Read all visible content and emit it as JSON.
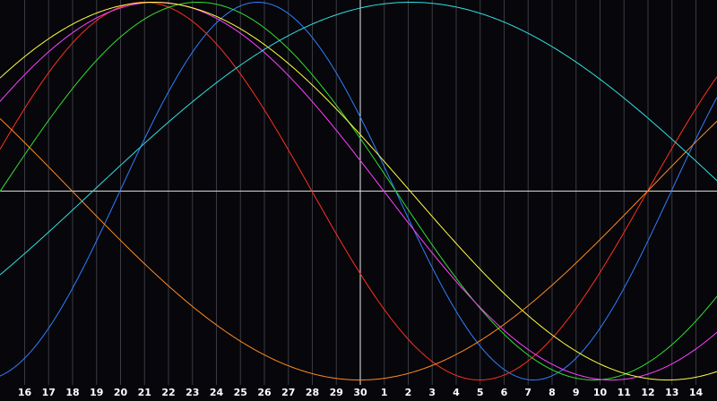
{
  "chart_data": {
    "type": "line",
    "title": "",
    "xlabel": "",
    "ylabel": "",
    "x_tick_labels": [
      "16",
      "17",
      "18",
      "19",
      "20",
      "21",
      "22",
      "23",
      "24",
      "25",
      "26",
      "27",
      "28",
      "29",
      "30",
      "1",
      "2",
      "3",
      "4",
      "5",
      "6",
      "7",
      "8",
      "9",
      "10",
      "11",
      "12",
      "13",
      "14"
    ],
    "today_label": "30",
    "ylim": [
      -1,
      1
    ],
    "grid": true,
    "legend": "none",
    "series": [
      {
        "color": "#2f7fff",
        "period_days": 23,
        "values": [
          -0.887,
          -0.269,
          0.398,
          0.887,
          0.997,
          0.682,
          0.063,
          -0.577,
          -0.97,
          -0.942,
          -0.52,
          0.136,
          0.731,
          0.998,
          0.816,
          0.27,
          -0.398,
          -0.887,
          -0.997,
          -0.682,
          -0.063,
          0.577,
          0.97,
          0.942,
          0.52,
          -0.136,
          -0.731,
          -0.998,
          -0.816
        ]
      },
      {
        "color": "#ff3020",
        "period_days": 28,
        "values": [
          0.434,
          0.782,
          0.975,
          0.975,
          0.782,
          0.434,
          0,
          -0.434,
          -0.782,
          -0.975,
          -0.975,
          -0.782,
          -0.434,
          0,
          0.434,
          0.782,
          0.975,
          0.975,
          0.782,
          0.434,
          0,
          -0.434,
          -0.782,
          -0.975,
          -0.975,
          -0.782,
          -0.434,
          0,
          0.434
        ]
      },
      {
        "color": "#30e030",
        "period_days": 33,
        "values": [
          0.189,
          0.541,
          0.815,
          0.971,
          0.989,
          0.866,
          0.618,
          0.282,
          -0.095,
          -0.458,
          -0.756,
          -0.945,
          -0.999,
          -0.909,
          -0.69,
          -0.372,
          0,
          0.372,
          0.69,
          0.909,
          0.999,
          0.945,
          0.756,
          0.458,
          0.095,
          -0.282,
          -0.618,
          -0.866,
          -0.989
        ]
      },
      {
        "color": "#ff40ff",
        "period_days": 38,
        "values": [
          0.614,
          0.837,
          0.969,
          0.998,
          0.921,
          0.749,
          0.5,
          0.2,
          -0.124,
          -0.43,
          -0.694,
          -0.884,
          -0.984,
          -0.984,
          -0.884,
          -0.694,
          -0.43,
          -0.124,
          0.2,
          0.5,
          0.749,
          0.921,
          0.998,
          0.969,
          0.837,
          0.614,
          0.325,
          0,
          -0.325
        ]
      },
      {
        "color": "#ffff40",
        "period_days": 43,
        "values": [
          0.71,
          0.887,
          0.985,
          0.997,
          0.92,
          0.764,
          0.54,
          0.27,
          -0.024,
          -0.311,
          -0.574,
          -0.789,
          -0.937,
          -0.999,
          -0.979,
          -0.875,
          -0.691,
          -0.451,
          -0.173,
          0.115,
          0.392,
          0.638,
          0.834,
          0.961,
          0.999,
          0.954,
          0.829,
          0.632,
          0.38
        ]
      },
      {
        "color": "#ff8c20",
        "period_days": 48,
        "values": [
          0.259,
          0,
          -0.259,
          -0.5,
          -0.707,
          -0.866,
          -0.966,
          -1,
          -0.966,
          -0.866,
          -0.707,
          -0.5,
          -0.259,
          0,
          0.259,
          0.5,
          0.707,
          0.866,
          0.966,
          1,
          0.966,
          0.866,
          0.707,
          0.5,
          0.259,
          0,
          -0.259,
          -0.5,
          -0.707
        ]
      },
      {
        "color": "#30e0e0",
        "period_days": 53,
        "values": [
          -0.333,
          -0.097,
          0.136,
          0.364,
          0.572,
          0.751,
          0.89,
          0.976,
          1,
          0.96,
          0.861,
          0.71,
          0.513,
          0.289,
          0.051,
          -0.187,
          -0.41,
          -0.612,
          -0.783,
          -0.909,
          -0.986,
          -0.996,
          -0.948,
          -0.84,
          -0.676,
          -0.467,
          -0.231,
          0.012,
          0.253
        ]
      }
    ]
  }
}
